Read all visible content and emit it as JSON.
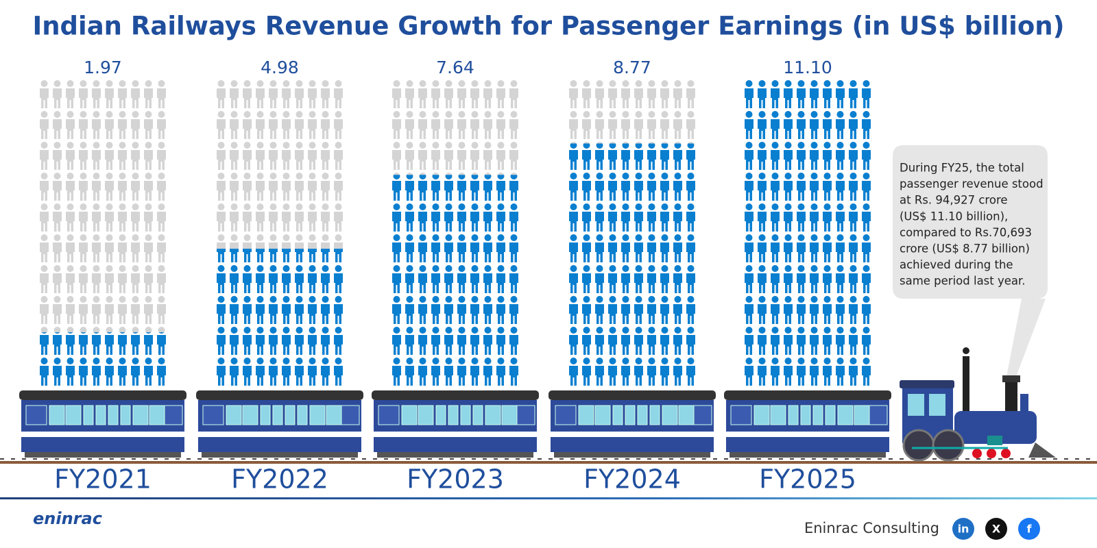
{
  "chart_data": {
    "type": "pictogram",
    "title": "Indian Railways Revenue Growth for Passenger Earnings (in US$ billion)",
    "categories": [
      "FY2021",
      "FY2022",
      "FY2023",
      "FY2024",
      "FY2025"
    ],
    "values": [
      1.97,
      4.98,
      7.64,
      8.77,
      11.1
    ],
    "value_labels": [
      "1.97",
      "4.98",
      "7.64",
      "8.77",
      "11.10"
    ],
    "color": "#0a7fd0",
    "empty_color": "#d4d4d4",
    "annotation": [
      "During FY25, the total",
      "passenger revenue stood",
      "at Rs. 94,927 crore",
      "(US$ 11.10 billion),",
      "compared to Rs.70,693",
      "crore (US$ 8.77 billion)",
      "achieved during the",
      "same period last year."
    ]
  },
  "footer": {
    "company": "Eninrac Consulting",
    "logo": "eninrac",
    "social": [
      "in",
      "X",
      "f"
    ]
  }
}
